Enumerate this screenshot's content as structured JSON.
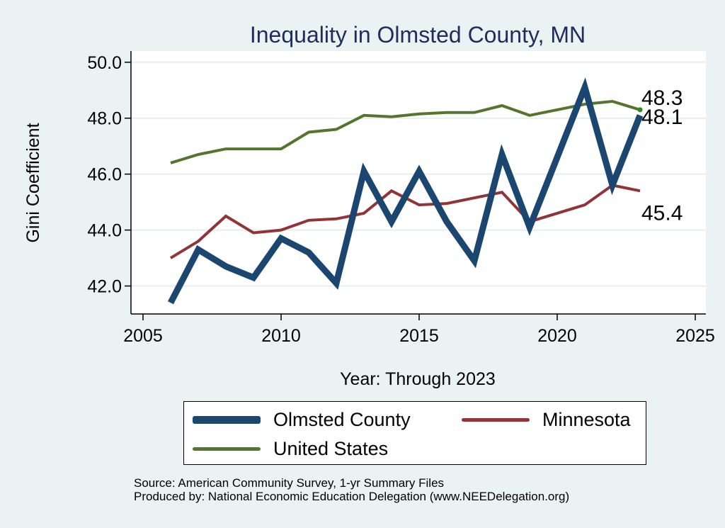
{
  "colors": {
    "background": "#eaf2f3",
    "plot_background": "#ffffff",
    "title": "#1f2d5a",
    "olmsted": "#1a4670",
    "minnesota": "#903438",
    "united_states": "#55752f"
  },
  "chart_data": {
    "type": "line",
    "title": "Inequality in Olmsted County, MN",
    "xlabel": "Year: Through 2023",
    "ylabel": "Gini Coefficient",
    "xlim": [
      2005,
      2025
    ],
    "ylim": [
      41.0,
      50.4
    ],
    "xticks": [
      2005,
      2010,
      2015,
      2020,
      2025
    ],
    "yticks": [
      "42.0",
      "44.0",
      "46.0",
      "48.0",
      "50.0"
    ],
    "grid": true,
    "legend_position": "bottom",
    "x": [
      2006,
      2007,
      2008,
      2009,
      2010,
      2011,
      2012,
      2013,
      2014,
      2015,
      2016,
      2017,
      2018,
      2019,
      2020,
      2021,
      2022,
      2023
    ],
    "series": [
      {
        "name": "Olmsted County",
        "color": "#1a4670",
        "values": [
          41.4,
          43.3,
          42.7,
          42.3,
          43.7,
          43.2,
          42.1,
          46.1,
          44.3,
          46.1,
          44.3,
          42.9,
          46.7,
          44.1,
          46.6,
          49.1,
          45.6,
          48.1
        ],
        "end_label": "48.1"
      },
      {
        "name": "Minnesota",
        "color": "#903438",
        "values": [
          43.0,
          43.6,
          44.5,
          43.9,
          44.0,
          44.35,
          44.4,
          44.6,
          45.4,
          44.9,
          44.95,
          45.15,
          45.35,
          44.3,
          44.6,
          44.9,
          45.6,
          45.4
        ],
        "end_label": "45.4"
      },
      {
        "name": "United States",
        "color": "#55752f",
        "values": [
          46.4,
          46.7,
          46.9,
          46.9,
          46.9,
          47.5,
          47.6,
          48.1,
          48.05,
          48.15,
          48.2,
          48.2,
          48.45,
          48.1,
          48.3,
          48.5,
          48.6,
          48.3
        ],
        "end_label": "48.3"
      }
    ]
  },
  "legend": {
    "items": [
      {
        "label": "Olmsted County"
      },
      {
        "label": "Minnesota"
      },
      {
        "label": "United States"
      }
    ]
  },
  "source": {
    "line1": "Source: American Community Survey, 1-yr Summary Files",
    "line2": "Produced by: National Economic Education Delegation (www.NEEDelegation.org)"
  }
}
